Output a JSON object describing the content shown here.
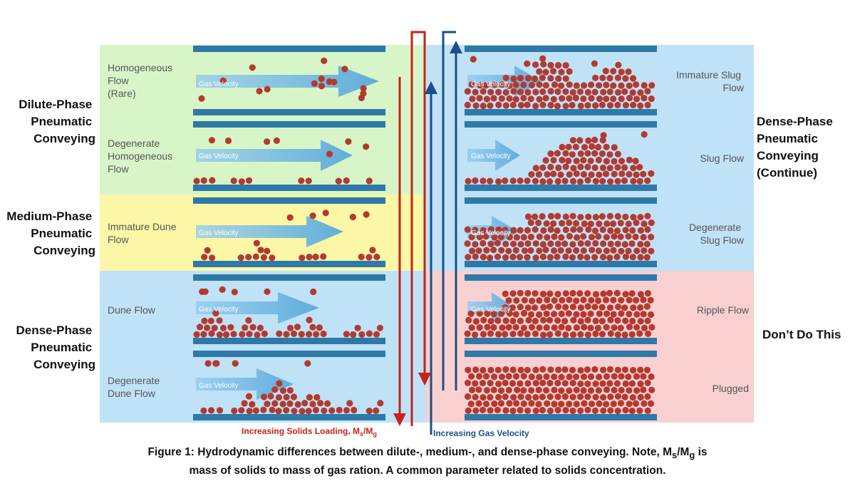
{
  "phases": {
    "dilute": [
      "Dilute-Phase",
      "Pneumatic",
      "Conveying"
    ],
    "medium": [
      "Medium-Phase",
      "Pneumatic",
      "Conveying"
    ],
    "dense_left": [
      "Dense-Phase",
      "Pneumatic",
      "Conveying"
    ],
    "dense_right": [
      "Dense-Phase",
      "Pneumatic",
      "Conveying",
      "(Continue)"
    ],
    "dont": [
      "Don’t Do This"
    ]
  },
  "flows": {
    "homogeneous": [
      "Homogeneous",
      "Flow",
      "(Rare)"
    ],
    "degenerate_homogeneous": [
      "Degenerate",
      "Homogeneous",
      "Flow"
    ],
    "immature_dune": [
      "Immature Dune",
      "Flow"
    ],
    "dune": [
      "Dune Flow"
    ],
    "degenerate_dune": [
      "Degenerate",
      "Dune Flow"
    ],
    "immature_slug": [
      "Immature Slug",
      "Flow"
    ],
    "slug": [
      "Slug Flow"
    ],
    "degenerate_slug": [
      "Degenerate",
      "Slug Flow"
    ],
    "ripple": [
      "Ripple Flow"
    ],
    "plugged": [
      "Plugged"
    ]
  },
  "gas_velocity_label": "Gas Velocity",
  "axis": {
    "solids_loading": "Increasing Solids Loading, M",
    "solids_loading_sub1": "s",
    "solids_loading_sep": "/M",
    "solids_loading_sub2": "g",
    "gas_velocity": "Increasing Gas Velocity"
  },
  "caption": {
    "line1_a": "Figure 1:  Hydrodynamic differences between dilute-, medium-, and dense-phase conveying. Note, M",
    "line1_sub1": "s",
    "line1_b": "/M",
    "line1_sub2": "g",
    "line1_c": " is",
    "line2": "mass of solids to mass of gas ration.  A common parameter related to solids concentration."
  },
  "colors": {
    "dilute_bg": "#d8f5c8",
    "medium_bg": "#fbf7a6",
    "dense_bg": "#bfe2f7",
    "dont_bg": "#f9d0d0",
    "pipe": "#2e79a8",
    "particle": "#b33a30",
    "gas_arrow": "#6fb3de",
    "solids_arrow": "#c4221a",
    "velocity_arrow": "#1d4f86"
  }
}
